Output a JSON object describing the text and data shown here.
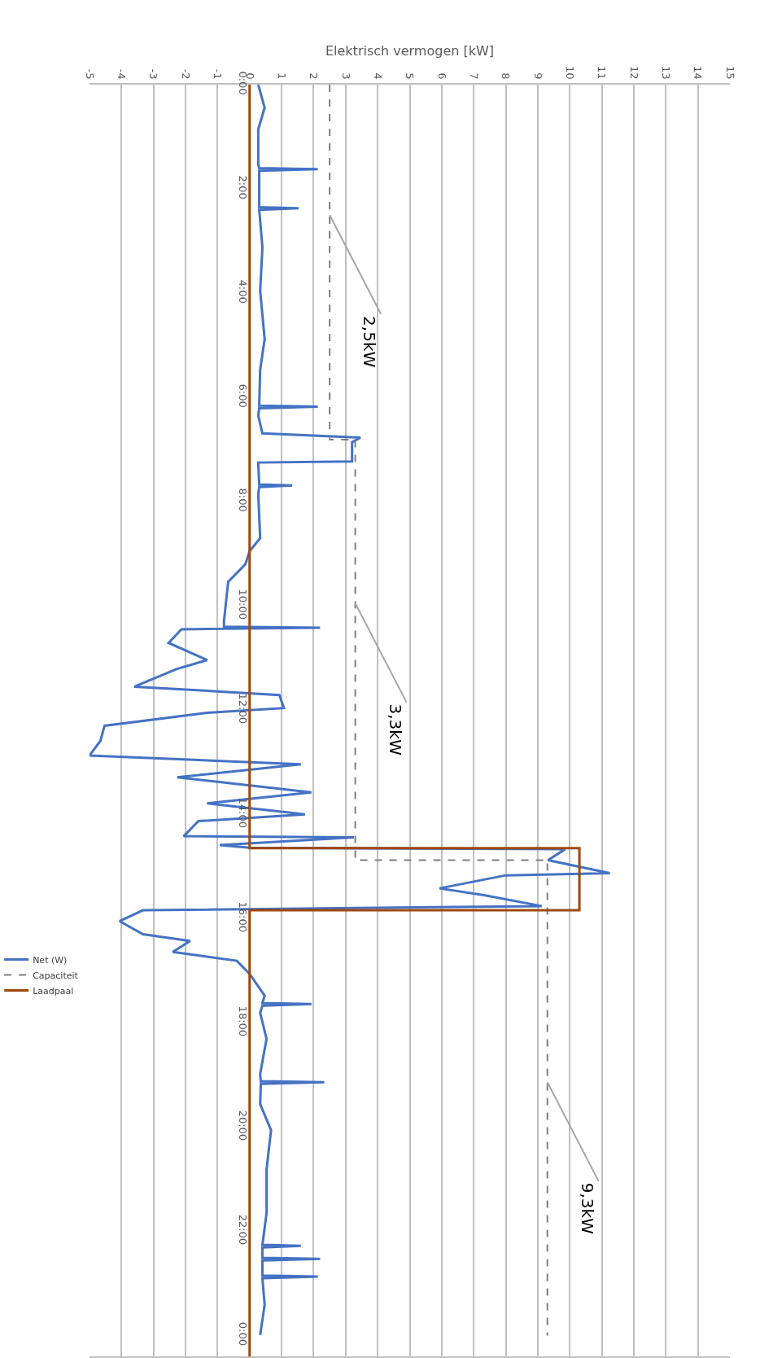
{
  "chart_data": {
    "type": "line",
    "orientation": "horizontal",
    "xlabel": "Elektrisch vermogen [kW]",
    "xlim": [
      -5,
      15
    ],
    "xticks": [
      -5,
      -4,
      -3,
      -2,
      -1,
      0,
      1,
      2,
      3,
      4,
      5,
      6,
      7,
      8,
      9,
      10,
      11,
      12,
      13,
      14,
      15
    ],
    "ylim": [
      24.4,
      0
    ],
    "yticks": [
      {
        "value": 0,
        "label": "0:00"
      },
      {
        "value": 2,
        "label": "2:00"
      },
      {
        "value": 4,
        "label": "4:00"
      },
      {
        "value": 6,
        "label": "6:00"
      },
      {
        "value": 8,
        "label": "8:00"
      },
      {
        "value": 10,
        "label": "10:00"
      },
      {
        "value": 12,
        "label": "12:00"
      },
      {
        "value": 14,
        "label": "14:00"
      },
      {
        "value": 16,
        "label": "16:00"
      },
      {
        "value": 18,
        "label": "18:00"
      },
      {
        "value": 20,
        "label": "20:00"
      },
      {
        "value": 22,
        "label": "22:00"
      },
      {
        "value": 24,
        "label": "0:00"
      }
    ],
    "grid": "x",
    "legend": "left",
    "series": [
      {
        "name": "Net (W)",
        "color": "#4472c4",
        "line_style": "solid",
        "x": [
          0,
          0.44,
          0.86,
          1.53,
          1.6,
          1.62,
          1.65,
          2.35,
          2.37,
          2.4,
          3.12,
          3.96,
          4.88,
          5.47,
          6.16,
          6.18,
          6.21,
          6.35,
          6.69,
          6.77,
          6.86,
          7.23,
          7.25,
          7.67,
          7.69,
          7.72,
          7.86,
          8.7,
          8.95,
          9.2,
          9.54,
          10.29,
          10.4,
          10.42,
          10.45,
          10.71,
          11.04,
          11.21,
          11.55,
          11.71,
          11.96,
          12.05,
          12.3,
          12.59,
          12.87,
          13.04,
          13.29,
          13.58,
          13.79,
          14.0,
          14.13,
          14.42,
          14.44,
          14.59,
          14.64,
          14.67,
          14.88,
          15.13,
          15.17,
          15.42,
          15.55,
          15.76,
          15.84,
          16.05,
          16.3,
          16.43,
          16.64,
          16.81,
          17.06,
          17.48,
          17.62,
          17.64,
          17.67,
          17.81,
          18.31,
          18.98,
          19.12,
          19.14,
          19.17,
          19.56,
          20.06,
          20.81,
          21.65,
          22.26,
          22.28,
          22.31,
          22.51,
          22.53,
          22.56,
          22.85,
          22.87,
          22.9,
          23.41,
          23.99
        ],
        "values": [
          0.27,
          0.47,
          0.27,
          0.27,
          0.3,
          2.13,
          0.3,
          0.3,
          1.53,
          0.3,
          0.4,
          0.33,
          0.47,
          0.33,
          0.3,
          2.13,
          0.3,
          0.27,
          0.4,
          3.46,
          3.2,
          3.2,
          0.27,
          0.3,
          1.33,
          0.3,
          0.27,
          0.33,
          0,
          -0.13,
          -0.67,
          -0.8,
          -0.8,
          2.2,
          -2.13,
          -2.53,
          -1.33,
          -2.27,
          -3.6,
          0.93,
          1.07,
          -1.33,
          -4.53,
          -4.66,
          -5,
          1.6,
          -2.26,
          1.93,
          -1.33,
          1.73,
          -1.6,
          -2.06,
          3.26,
          -0.93,
          0,
          9.85,
          9.32,
          11.25,
          8.0,
          5.93,
          7.32,
          9.12,
          -3.33,
          -4.06,
          -3.33,
          -1.86,
          -2.4,
          -0.4,
          0,
          0.47,
          0.4,
          1.93,
          0.4,
          0.33,
          0.53,
          0.33,
          0.35,
          2.33,
          0.35,
          0.33,
          0.67,
          0.53,
          0.53,
          0.4,
          1.6,
          0.4,
          0.4,
          2.2,
          0.4,
          0.4,
          2.13,
          0.4,
          0.47,
          0.33
        ]
      },
      {
        "name": "Capaciteit",
        "color": "#7f7f7f",
        "line_style": "dashed",
        "x": [
          0,
          6.81,
          6.81,
          14.88,
          14.88,
          24.0
        ],
        "values": [
          2.5,
          2.5,
          3.3,
          3.3,
          9.3,
          9.3
        ]
      },
      {
        "name": "Laadpaal",
        "color": "#9e480e",
        "line_style": "solid",
        "x": [
          0,
          14.65,
          14.65,
          15.84,
          15.84,
          24.4
        ],
        "values": [
          0,
          0,
          10.3,
          10.3,
          0,
          0
        ]
      }
    ],
    "annotations": [
      {
        "text": "2,5kW",
        "x": 2.5,
        "y": 2.5
      },
      {
        "text": "3,3kW",
        "x": 3.3,
        "y": 9.95
      },
      {
        "text": "9,3kW",
        "x": 9.3,
        "y": 19.14
      }
    ]
  }
}
